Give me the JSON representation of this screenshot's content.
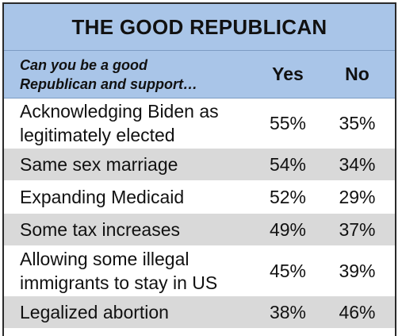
{
  "table": {
    "title": "THE GOOD REPUBLICAN",
    "question_line1": "Can you be a good",
    "question_line2": "Republican and support…",
    "col_yes": "Yes",
    "col_no": "No"
  },
  "chart_data": {
    "type": "table",
    "title": "THE GOOD REPUBLICAN",
    "row_header": "Can you be a good Republican and support…",
    "columns": [
      "Yes",
      "No"
    ],
    "rows": [
      {
        "label_line1": "Acknowledging Biden as",
        "label_line2": "legitimately elected",
        "yes": "55%",
        "no": "35%"
      },
      {
        "label_line1": "Same sex marriage",
        "label_line2": "",
        "yes": "54%",
        "no": "34%"
      },
      {
        "label_line1": "Expanding Medicaid",
        "label_line2": "",
        "yes": "52%",
        "no": "29%"
      },
      {
        "label_line1": "Some tax increases",
        "label_line2": "",
        "yes": "49%",
        "no": "37%"
      },
      {
        "label_line1": "Allowing some illegal",
        "label_line2": "immigrants to stay in US",
        "yes": "45%",
        "no": "39%"
      },
      {
        "label_line1": "Legalized abortion",
        "label_line2": "",
        "yes": "38%",
        "no": "46%"
      }
    ],
    "colors": {
      "header": "#a9c5e8",
      "shaded_row": "#d9d9d9",
      "plain_row": "#ffffff"
    }
  }
}
